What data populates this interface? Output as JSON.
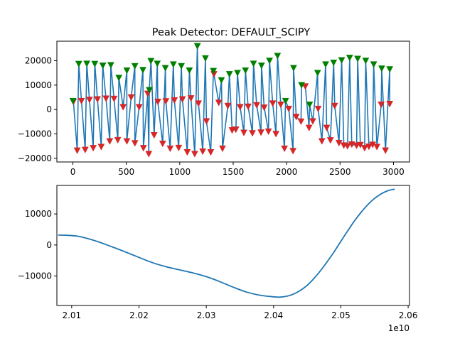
{
  "chart_data": [
    {
      "type": "line",
      "title": "Peak Detector: DEFAULT_SCIPY",
      "xlim": [
        -150,
        3150
      ],
      "ylim": [
        -21500,
        28000
      ],
      "xticks": [
        0,
        500,
        1000,
        1500,
        2000,
        2500,
        3000
      ],
      "xtick_labels": [
        "0",
        "500",
        "1000",
        "1500",
        "2000",
        "2500",
        "3000"
      ],
      "yticks": [
        -20000,
        -10000,
        0,
        10000,
        20000
      ],
      "ytick_labels": [
        "−20000",
        "−10000",
        "0",
        "10000",
        "20000"
      ],
      "colors": {
        "line": "#1f77b4",
        "peak_marker": "#008000",
        "valley_marker": "#d62728"
      },
      "series": [
        {
          "marker": "peaks",
          "x": [
            0,
            55,
            130,
            205,
            280,
            355,
            430,
            505,
            580,
            655,
            715,
            730,
            790,
            865,
            940,
            1015,
            1090,
            1165,
            1240,
            1315,
            1390,
            1465,
            1540,
            1615,
            1690,
            1765,
            1840,
            1915,
            1990,
            2065,
            2140,
            2215,
            2290,
            2365,
            2440,
            2515,
            2590,
            2665,
            2740,
            2815,
            2890,
            2965
          ],
          "y": [
            3500,
            18700,
            18800,
            18700,
            18000,
            18200,
            13000,
            16000,
            17800,
            16200,
            8000,
            19900,
            18800,
            17000,
            18500,
            17800,
            16000,
            26000,
            21000,
            15800,
            12000,
            14500,
            15000,
            16000,
            18800,
            18000,
            20000,
            22000,
            3500,
            17000,
            10000,
            2000,
            15000,
            18500,
            19200,
            20200,
            21200,
            20800,
            20000,
            18500,
            16800,
            16500
          ]
        },
        {
          "marker": "valleys",
          "x": [
            5,
            40,
            80,
            115,
            155,
            190,
            230,
            265,
            310,
            345,
            385,
            420,
            470,
            505,
            545,
            580,
            620,
            660,
            700,
            710,
            760,
            795,
            840,
            870,
            910,
            950,
            990,
            1025,
            1070,
            1105,
            1140,
            1175,
            1215,
            1250,
            1290,
            1320,
            1365,
            1400,
            1450,
            1490,
            1525,
            1565,
            1600,
            1640,
            1680,
            1720,
            1760,
            1790,
            1830,
            1870,
            1900,
            1945,
            1980,
            2020,
            2060,
            2090,
            2135,
            2175,
            2210,
            2245,
            2295,
            2330,
            2375,
            2410,
            2450,
            2490,
            2535,
            2570,
            2610,
            2655,
            2690,
            2730,
            2770,
            2805,
            2845,
            2885,
            2925,
            2965
          ],
          "y": [
            3200,
            -16800,
            3500,
            -16500,
            4000,
            -15800,
            4200,
            -15300,
            4500,
            -13000,
            4400,
            -12500,
            1000,
            -13000,
            5000,
            -13800,
            1000,
            -15800,
            6500,
            -18200,
            -10500,
            3200,
            -14000,
            3400,
            -16000,
            3800,
            -15700,
            4200,
            -17500,
            4600,
            -18200,
            2500,
            -17200,
            -4800,
            -17500,
            14500,
            2800,
            -16000,
            1500,
            -8500,
            -8200,
            1000,
            -9500,
            1200,
            -9700,
            1800,
            -9400,
            800,
            -9000,
            2500,
            -10000,
            2000,
            -16000,
            300,
            -17000,
            -3000,
            -4900,
            9500,
            -7500,
            -4800,
            300,
            -13000,
            -7500,
            -12600,
            1500,
            -13700,
            -14700,
            -15000,
            -14300,
            -14800,
            -14500,
            -15800,
            -15200,
            -14400,
            -15300,
            2000,
            -16800,
            2300
          ]
        }
      ]
    },
    {
      "type": "line",
      "xlim": [
        20078000000,
        20602000000
      ],
      "ylim": [
        -19500,
        19200
      ],
      "xticks": [
        20100000000,
        20200000000,
        20300000000,
        20400000000,
        20500000000,
        20600000000
      ],
      "xtick_labels": [
        "2.01",
        "2.02",
        "2.03",
        "2.04",
        "2.05",
        "2.06"
      ],
      "offset_label": "1e10",
      "yticks": [
        -10000,
        0,
        10000
      ],
      "ytick_labels": [
        "−10000",
        "0",
        "10000"
      ],
      "colors": {
        "line": "#1f77b4"
      },
      "series": [
        {
          "x": [
            20080000000,
            20095000000,
            20110000000,
            20125000000,
            20140000000,
            20155000000,
            20170000000,
            20185000000,
            20200000000,
            20220000000,
            20240000000,
            20260000000,
            20280000000,
            20300000000,
            20320000000,
            20340000000,
            20360000000,
            20380000000,
            20400000000,
            20410000000,
            20420000000,
            20430000000,
            20440000000,
            20450000000,
            20460000000,
            20470000000,
            20480000000,
            20490000000,
            20500000000,
            20510000000,
            20520000000,
            20530000000,
            20540000000,
            20550000000,
            20560000000,
            20570000000,
            20580000000
          ],
          "y": [
            3200,
            3100,
            2800,
            2000,
            1000,
            -200,
            -1400,
            -2700,
            -4000,
            -5700,
            -7000,
            -8000,
            -9000,
            -10200,
            -11800,
            -13600,
            -15200,
            -16200,
            -16700,
            -16800,
            -16500,
            -15800,
            -14600,
            -13000,
            -10800,
            -8200,
            -5300,
            -2200,
            1200,
            4500,
            7700,
            10500,
            13000,
            15000,
            16500,
            17500,
            18000
          ]
        }
      ]
    }
  ]
}
